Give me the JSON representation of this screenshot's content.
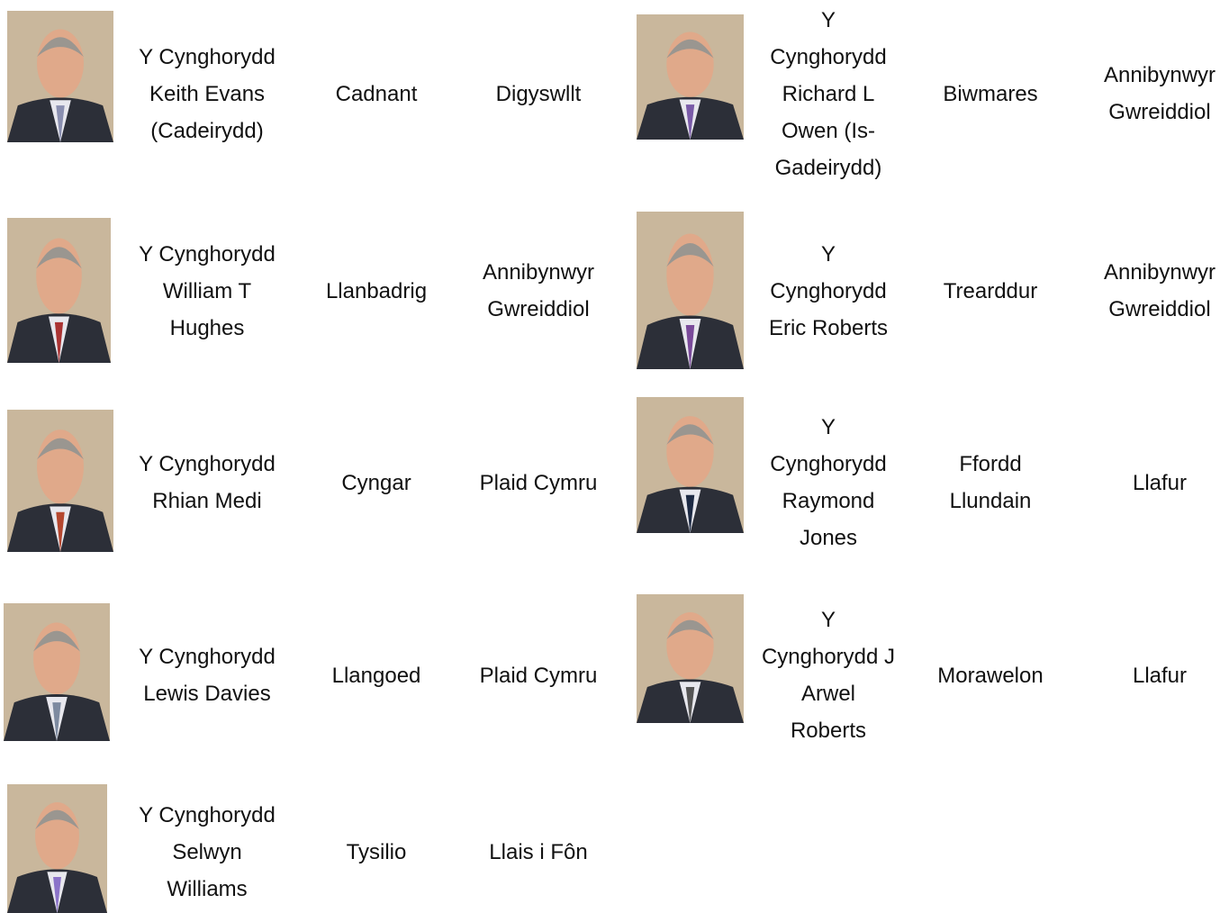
{
  "left_table": {
    "rows": [
      {
        "name": [
          "Y Cynghorydd",
          "Keith Evans",
          "(Cadeirydd)"
        ],
        "ward": [
          "Cadnant"
        ],
        "party": [
          "Digyswllt"
        ]
      },
      {
        "name": [
          "Y Cynghorydd",
          "William T",
          "Hughes"
        ],
        "ward": [
          "Llanbadrig"
        ],
        "party": [
          "Annibynwyr",
          "Gwreiddiol"
        ]
      },
      {
        "name": [
          "Y Cynghorydd",
          "Rhian Medi"
        ],
        "ward": [
          "Cyngar"
        ],
        "party": [
          "Plaid Cymru"
        ]
      },
      {
        "name": [
          "Y Cynghorydd",
          "Lewis Davies"
        ],
        "ward": [
          "Llangoed"
        ],
        "party": [
          "Plaid Cymru"
        ]
      },
      {
        "name": [
          "Y Cynghorydd",
          "Selwyn",
          "Williams"
        ],
        "ward": [
          "Tysilio"
        ],
        "party": [
          "Llais i Fôn"
        ]
      }
    ]
  },
  "right_table": {
    "rows": [
      {
        "name": [
          "Y",
          "Cynghorydd",
          "Richard L",
          "Owen (Is-",
          "Gadeirydd)"
        ],
        "ward": [
          "Biwmares"
        ],
        "party": [
          "Annibynwyr",
          "Gwreiddiol"
        ]
      },
      {
        "name": [
          "Y",
          "Cynghorydd",
          "Eric Roberts"
        ],
        "ward": [
          "Trearddur"
        ],
        "party": [
          "Annibynwyr",
          "Gwreiddiol"
        ]
      },
      {
        "name": [
          "Y",
          "Cynghorydd",
          "Raymond",
          "Jones"
        ],
        "ward": [
          "Ffordd",
          "Llundain"
        ],
        "party": [
          "Llafur"
        ]
      },
      {
        "name": [
          "Y",
          "Cynghorydd J",
          "Arwel",
          "Roberts"
        ],
        "ward": [
          "Morawelon"
        ],
        "party": [
          "Llafur"
        ]
      }
    ]
  }
}
